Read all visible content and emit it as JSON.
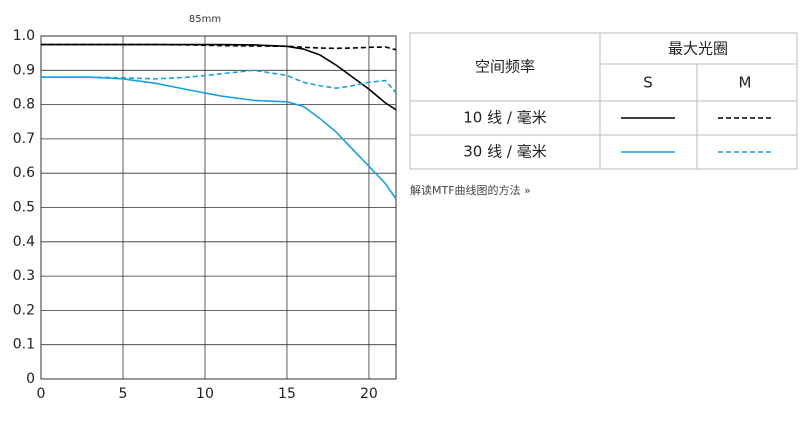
{
  "chart_data": {
    "type": "line",
    "title": "85mm",
    "x": [
      0,
      3,
      5,
      7,
      9,
      11,
      13,
      15,
      16,
      17,
      18,
      19,
      20,
      21,
      21.65
    ],
    "xlim": [
      0,
      21.65
    ],
    "xticks": [
      0,
      5,
      10,
      15,
      20
    ],
    "ylim": [
      0,
      1
    ],
    "yticks": [
      {
        "value": 0,
        "label": "0"
      },
      0.1,
      0.2,
      0.3,
      0.4,
      0.5,
      0.6,
      0.7,
      0.8,
      0.9,
      {
        "value": 1,
        "label": "1.0"
      }
    ],
    "grid": true,
    "series": [
      {
        "color": "#000000",
        "dash": false,
        "values": [
          0.975,
          0.975,
          0.975,
          0.975,
          0.975,
          0.975,
          0.974,
          0.97,
          0.962,
          0.945,
          0.915,
          0.88,
          0.845,
          0.805,
          0.785
        ]
      },
      {
        "color": "#000000",
        "dash": true,
        "values": [
          0.975,
          0.975,
          0.975,
          0.975,
          0.974,
          0.972,
          0.971,
          0.97,
          0.967,
          0.965,
          0.964,
          0.965,
          0.967,
          0.968,
          0.96
        ]
      },
      {
        "color": "#1a9fe0",
        "dash": false,
        "values": [
          0.88,
          0.88,
          0.875,
          0.862,
          0.843,
          0.825,
          0.812,
          0.808,
          0.795,
          0.76,
          0.72,
          0.67,
          0.62,
          0.57,
          0.525
        ]
      },
      {
        "color": "#1a9fe0",
        "dash": true,
        "values": [
          0.88,
          0.88,
          0.878,
          0.875,
          0.88,
          0.89,
          0.9,
          0.885,
          0.865,
          0.855,
          0.848,
          0.855,
          0.865,
          0.87,
          0.835
        ]
      }
    ],
    "legend": {
      "frequency_header": "空间频率",
      "aperture_header": "最大光圈",
      "apertures": [
        "S",
        "M"
      ],
      "frequencies": [
        "10 线 / 毫米",
        "30 线 / 毫米"
      ]
    }
  },
  "link": "解读MTF曲线图的方法 »"
}
